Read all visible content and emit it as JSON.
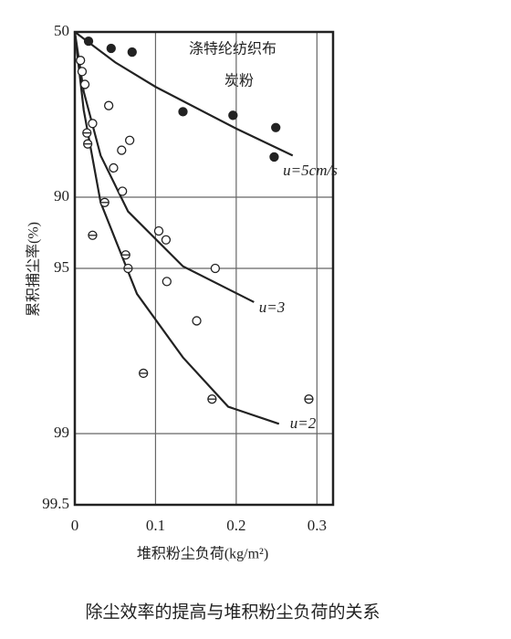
{
  "chart_data": {
    "type": "scatter",
    "caption": "除尘效率的提高与堆积粉尘负荷的关系",
    "annotations": [
      "涤特纶纺织布",
      "炭粉"
    ],
    "x_label": "堆积粉尘负荷(kg/m²)",
    "y_label": "累积捕尘率(%)",
    "xlim": [
      0,
      0.32
    ],
    "xticks": [
      0,
      0.1,
      0.2,
      0.3
    ],
    "ylim": [
      50,
      99.5
    ],
    "yticks": [
      50,
      90,
      95,
      99,
      99.5
    ],
    "yscale": "log_complement",
    "grid": true,
    "color": "#222222",
    "series": [
      {
        "marker": "filled",
        "x": [
          0.017,
          0.045,
          0.071,
          0.134,
          0.196,
          0.249,
          0.247
        ],
        "values": [
          54.3,
          57.4,
          58.9,
          77,
          77.8,
          80.3,
          85.2
        ]
      },
      {
        "marker": "open",
        "x": [
          0.007,
          0.009,
          0.0125,
          0.022,
          0.042,
          0.068,
          0.058,
          0.048,
          0.059,
          0.104,
          0.113,
          0.174,
          0.114,
          0.151
        ],
        "values": [
          62.1,
          66,
          70,
          79.5,
          75.6,
          82.6,
          84.2,
          86.7,
          89.4,
          92.8,
          93.4,
          95,
          95.6,
          97
        ]
      },
      {
        "marker": "barred",
        "x": [
          0.015,
          0.016,
          0.037,
          0.022,
          0.063,
          0.066,
          0.085,
          0.17,
          0.29
        ],
        "values": [
          81.3,
          83.2,
          90.5,
          93.1,
          94.3,
          95,
          98.2,
          98.6,
          98.6
        ]
      }
    ],
    "curves": [
      {
        "name": "u=5cm/s",
        "x": [
          0,
          0.05,
          0.1,
          0.2,
          0.27
        ],
        "values": [
          50,
          62.8,
          70.7,
          80.5,
          85
        ]
      },
      {
        "name": "u=3",
        "x": [
          0,
          0.011,
          0.032,
          0.066,
          0.134,
          0.222
        ],
        "values": [
          50,
          72,
          85,
          91.3,
          94.9,
          96.4
        ]
      },
      {
        "name": "u=2",
        "x": [
          0,
          0.011,
          0.032,
          0.077,
          0.134,
          0.19,
          0.253
        ],
        "values": [
          50,
          76.6,
          90.5,
          96.1,
          97.9,
          98.7,
          98.9
        ]
      }
    ]
  }
}
